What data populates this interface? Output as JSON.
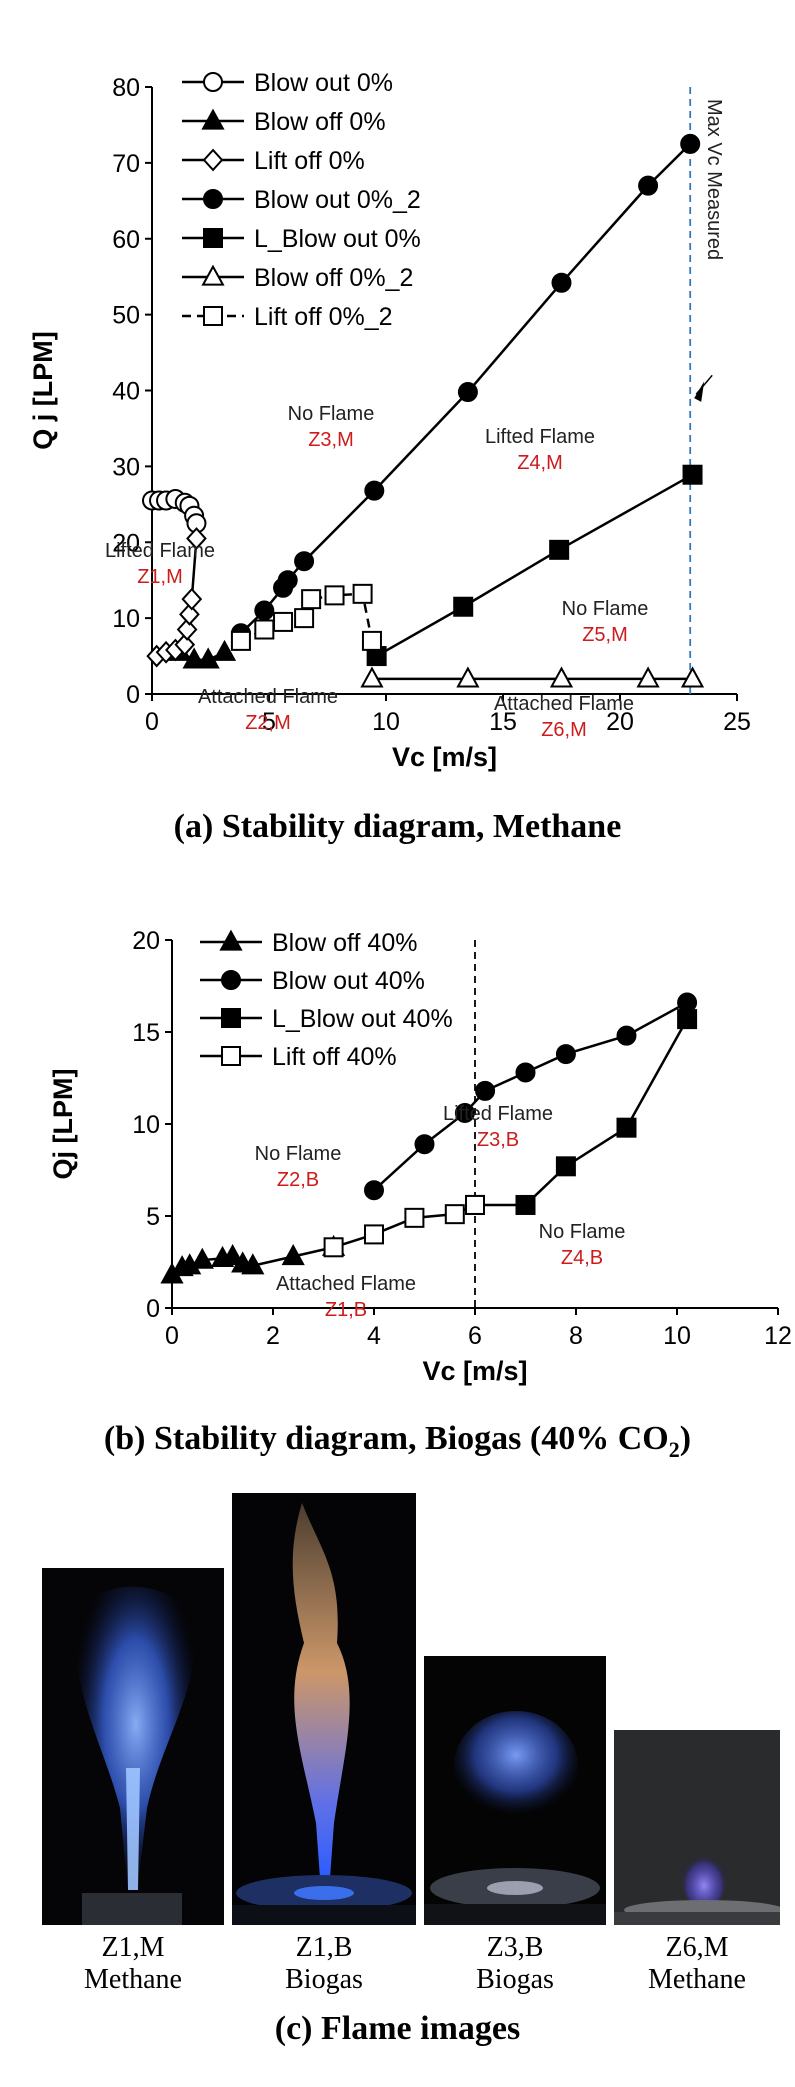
{
  "chart_data": [
    {
      "type": "line",
      "caption": "(a) Stability diagram, Methane",
      "xlabel": "Vc [m/s]",
      "ylabel": "Q j [LPM]",
      "xlim": [
        0,
        25
      ],
      "ylim": [
        0,
        80
      ],
      "xticks": [
        "0",
        "5",
        "10",
        "15",
        "20",
        "25"
      ],
      "yticks": [
        "0",
        "10",
        "20",
        "30",
        "40",
        "50",
        "60",
        "70",
        "80"
      ],
      "legend_position": "top-left",
      "series": [
        {
          "name": "Blow out 0%",
          "marker": "circle-open",
          "dash": false,
          "points": [
            [
              0,
              25.5
            ],
            [
              0.3,
              25.5
            ],
            [
              0.6,
              25.5
            ],
            [
              1.0,
              25.7
            ],
            [
              1.4,
              25.2
            ],
            [
              1.6,
              24.8
            ],
            [
              1.8,
              23.5
            ],
            [
              1.9,
              22.5
            ]
          ]
        },
        {
          "name": "Blow off 0%",
          "marker": "triangle-filled",
          "dash": false,
          "points": [
            [
              1.2,
              5.5
            ],
            [
              1.8,
              4.5
            ],
            [
              2.4,
              4.5
            ],
            [
              3.1,
              5.5
            ]
          ]
        },
        {
          "name": "Lift off 0%",
          "marker": "diamond-open",
          "dash": false,
          "points": [
            [
              0.2,
              5
            ],
            [
              0.6,
              5.5
            ],
            [
              1.0,
              5.8
            ],
            [
              1.4,
              6.5
            ],
            [
              1.5,
              8.5
            ],
            [
              1.6,
              10.5
            ],
            [
              1.7,
              12.5
            ],
            [
              1.9,
              20.5
            ]
          ]
        },
        {
          "name": "Blow out 0%_2",
          "marker": "circle-filled",
          "dash": false,
          "points": [
            [
              3.8,
              8
            ],
            [
              4.8,
              11
            ],
            [
              5.6,
              14
            ],
            [
              5.8,
              15
            ],
            [
              6.5,
              17.5
            ],
            [
              9.5,
              26.8
            ],
            [
              13.5,
              39.8
            ],
            [
              17.5,
              54.2
            ],
            [
              21.2,
              67
            ],
            [
              23,
              72.5
            ]
          ]
        },
        {
          "name": "L_Blow out 0%",
          "marker": "square-filled",
          "dash": false,
          "points": [
            [
              9.6,
              5
            ],
            [
              13.3,
              11.5
            ],
            [
              17.4,
              19
            ],
            [
              23.1,
              28.9
            ]
          ]
        },
        {
          "name": "Blow off 0%_2",
          "marker": "triangle-open",
          "dash": false,
          "points": [
            [
              9.4,
              2
            ],
            [
              13.5,
              2
            ],
            [
              17.5,
              2
            ],
            [
              21.2,
              2
            ],
            [
              23.1,
              2
            ]
          ]
        },
        {
          "name": "Lift off 0%_2",
          "marker": "square-open",
          "dash": true,
          "points": [
            [
              3.8,
              7
            ],
            [
              4.8,
              8.5
            ],
            [
              5.6,
              9.5
            ],
            [
              6.5,
              10
            ],
            [
              6.8,
              12.5
            ],
            [
              7.8,
              13
            ],
            [
              9,
              13.2
            ],
            [
              9.4,
              7
            ]
          ]
        }
      ],
      "vline": {
        "x": 23,
        "label": "Max Vc Measured",
        "label_sub": "c"
      },
      "zones": [
        {
          "text": "No Flame",
          "code": "Z3,M"
        },
        {
          "text": "Lifted Flame",
          "code": "Z4,M"
        },
        {
          "text": "Lifted Flame",
          "code": "Z1,M"
        },
        {
          "text": "No Flame",
          "code": "Z5,M"
        },
        {
          "text": "Attached Flame",
          "code": "Z2,M"
        },
        {
          "text": "Attached Flame",
          "code": "Z6,M"
        }
      ]
    },
    {
      "type": "line",
      "caption": "(b) Stability diagram, Biogas (40% CO2)",
      "xlabel": "Vc [m/s]",
      "ylabel": "Qj [LPM]",
      "xlim": [
        0,
        12
      ],
      "ylim": [
        0,
        20
      ],
      "xticks": [
        "0",
        "2",
        "4",
        "6",
        "8",
        "10",
        "12"
      ],
      "yticks": [
        "0",
        "5",
        "10",
        "15",
        "20"
      ],
      "legend_position": "top-left",
      "series": [
        {
          "name": "Blow off 40%",
          "marker": "triangle-filled",
          "dash": false,
          "points": [
            [
              0,
              1.8
            ],
            [
              0.2,
              2.2
            ],
            [
              0.35,
              2.3
            ],
            [
              0.6,
              2.6
            ],
            [
              1.0,
              2.7
            ],
            [
              1.2,
              2.8
            ],
            [
              1.4,
              2.4
            ],
            [
              1.6,
              2.3
            ],
            [
              2.4,
              2.8
            ],
            [
              3.2,
              3.3
            ]
          ]
        },
        {
          "name": "Blow out 40%",
          "marker": "circle-filled",
          "dash": false,
          "points": [
            [
              4.0,
              6.4
            ],
            [
              5.0,
              8.9
            ],
            [
              5.8,
              10.6
            ],
            [
              6.2,
              11.8
            ],
            [
              7.0,
              12.8
            ],
            [
              7.8,
              13.8
            ],
            [
              9.0,
              14.8
            ],
            [
              10.2,
              16.6
            ]
          ]
        },
        {
          "name": "L_Blow out 40%",
          "marker": "square-filled",
          "dash": false,
          "points": [
            [
              6.0,
              5.6
            ],
            [
              7.0,
              5.6
            ],
            [
              7.8,
              7.7
            ],
            [
              9.0,
              9.8
            ],
            [
              10.2,
              15.7
            ]
          ]
        },
        {
          "name": "Lift off 40%",
          "marker": "square-open",
          "dash": false,
          "points": [
            [
              3.2,
              3.3
            ],
            [
              4.0,
              4.0
            ],
            [
              4.8,
              4.9
            ],
            [
              5.6,
              5.1
            ],
            [
              6.0,
              5.6
            ]
          ]
        }
      ],
      "vline": {
        "x": 6
      },
      "zones": [
        {
          "text": "No Flame",
          "code": "Z2,B"
        },
        {
          "text": "Lifted Flame",
          "code": "Z3,B"
        },
        {
          "text": "No Flame",
          "code": "Z4,B"
        },
        {
          "text": "Attached Flame",
          "code": "Z1,B"
        }
      ]
    }
  ],
  "captions": {
    "a": "(a) Stability diagram, Methane",
    "b_main": "(b) Stability diagram, Biogas (40% CO",
    "b_sub": "2",
    "b_end": ")",
    "c": "(c) Flame images"
  },
  "photos": [
    {
      "code": "Z1,M",
      "fuel": "Methane",
      "flame_color": "#4b86ff"
    },
    {
      "code": "Z1,B",
      "fuel": "Biogas",
      "flame_color": "#f0b07a"
    },
    {
      "code": "Z3,B",
      "fuel": "Biogas",
      "flame_color": "#4f7ee8"
    },
    {
      "code": "Z6,M",
      "fuel": "Methane",
      "flame_color": "#6a5cff"
    }
  ]
}
